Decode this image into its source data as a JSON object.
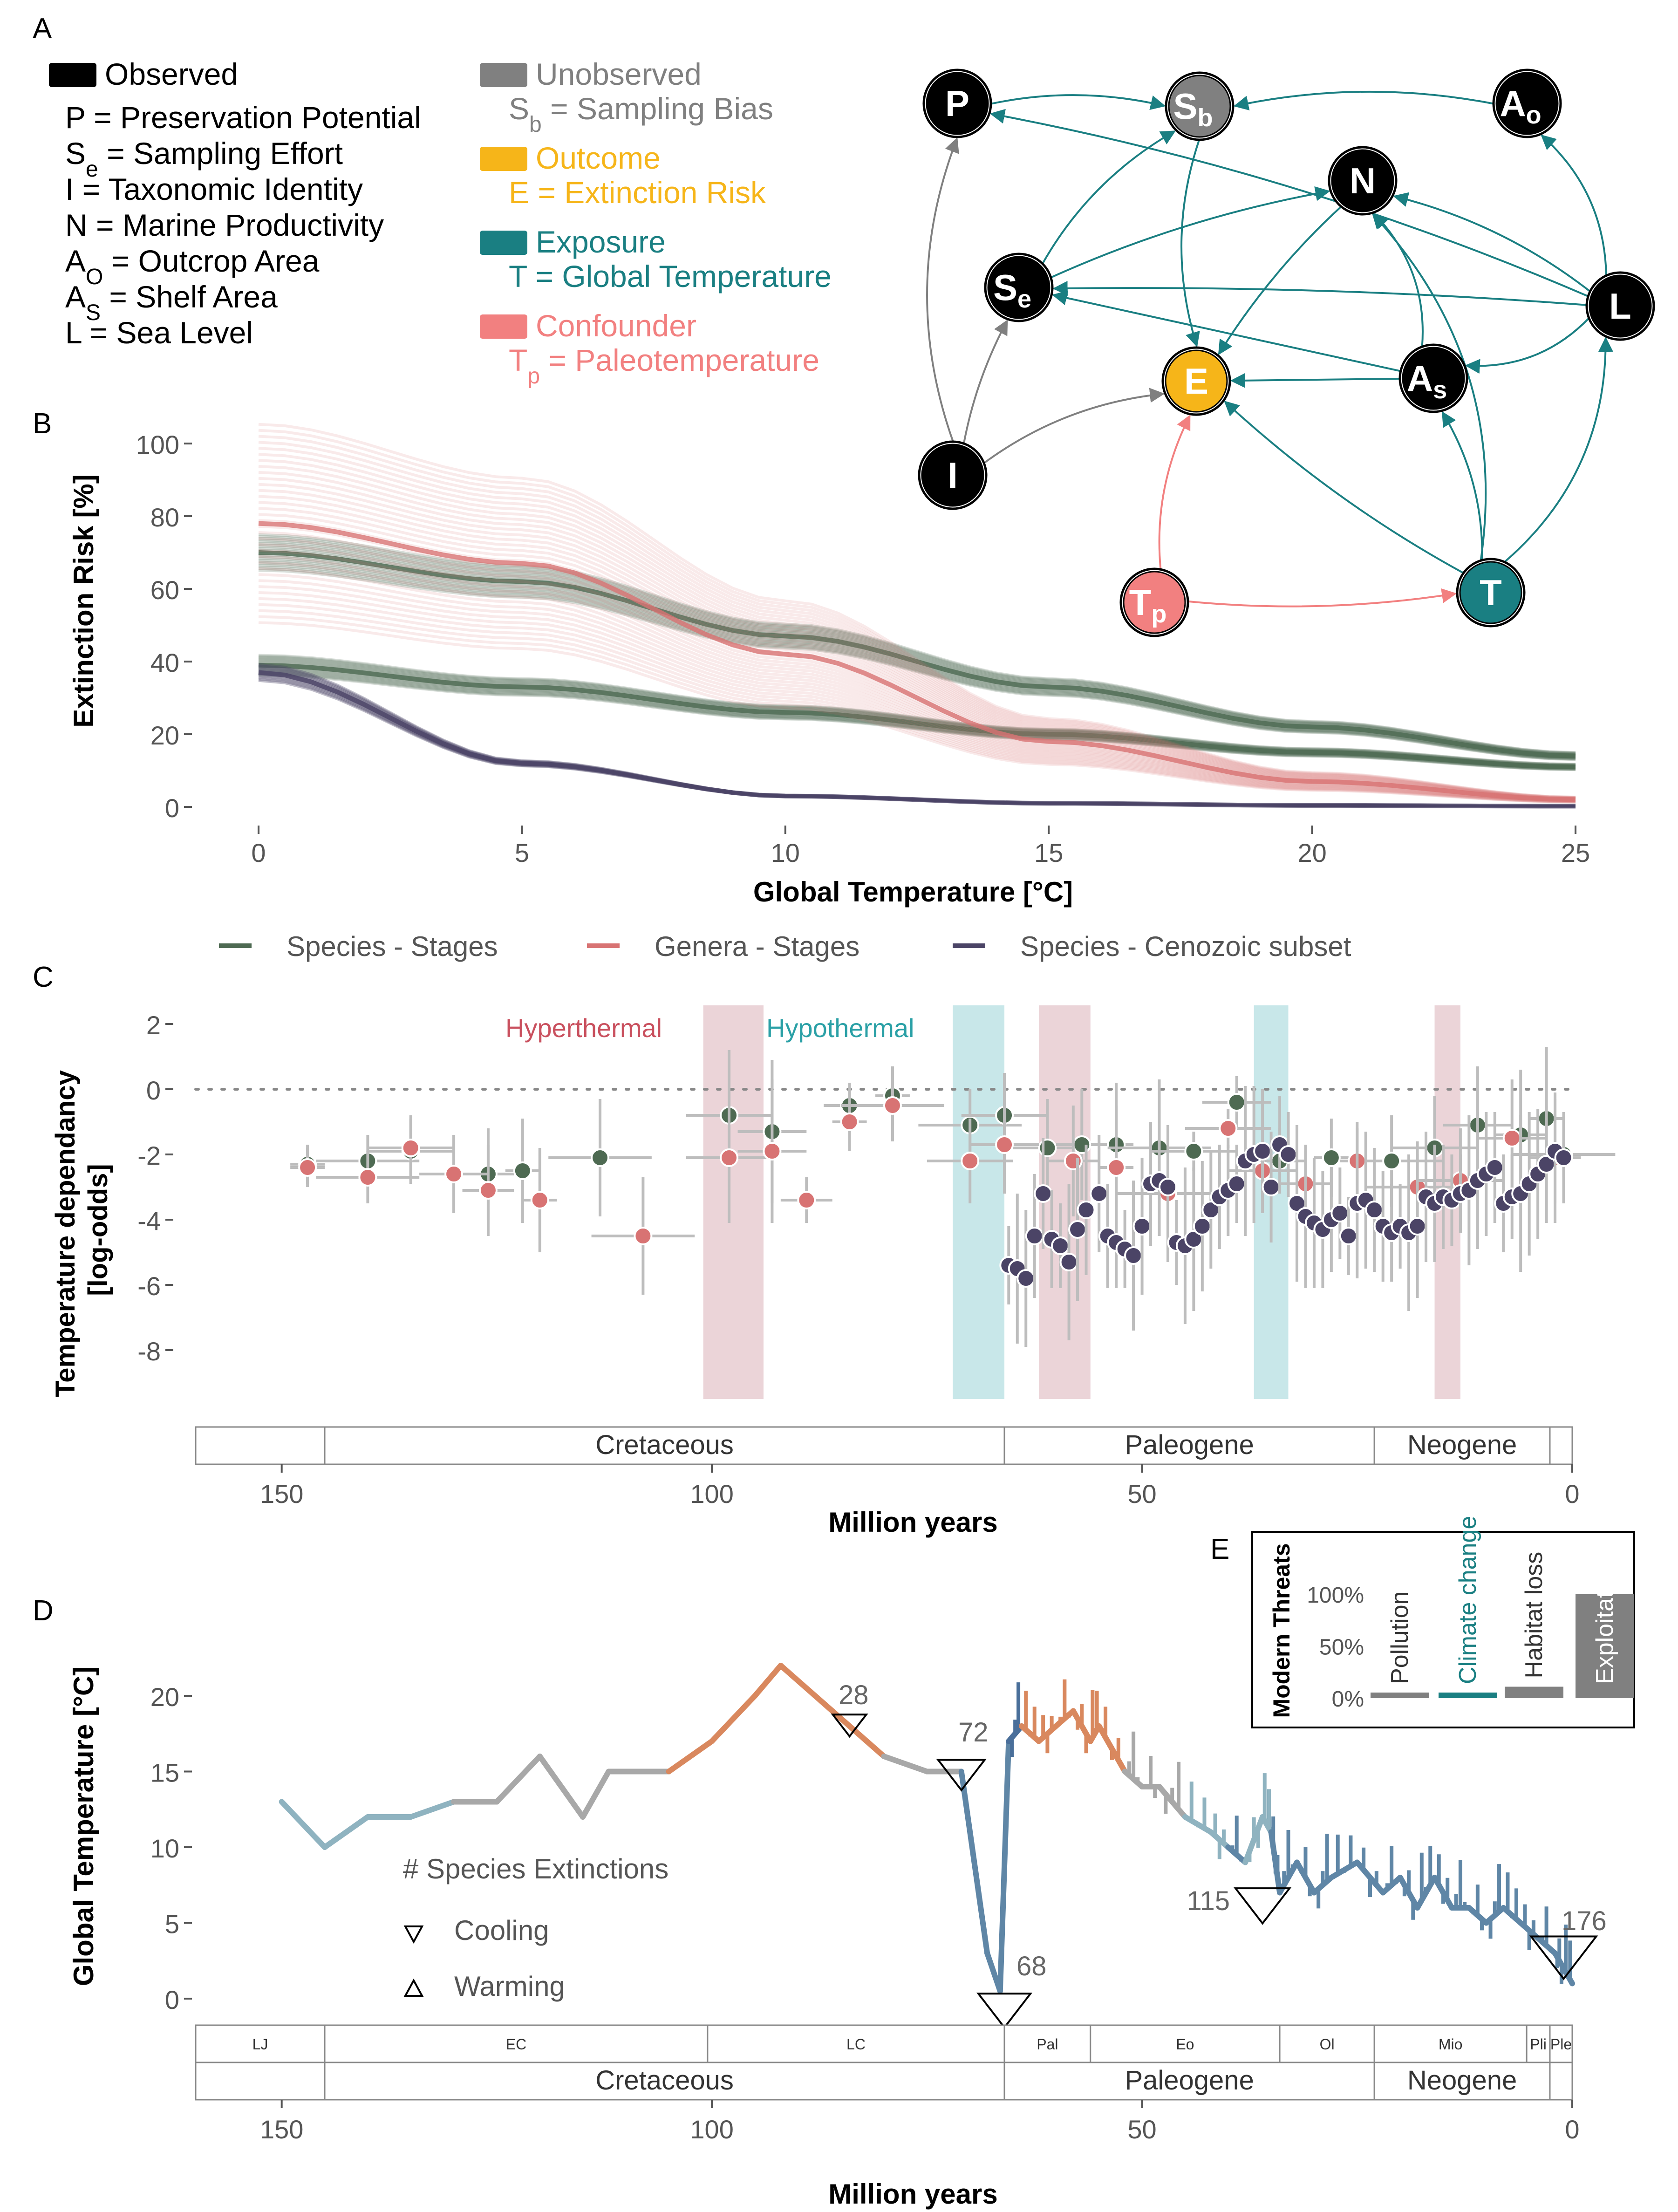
{
  "panels": {
    "A": "A",
    "B": "B",
    "C": "C",
    "D": "D",
    "E": "E"
  },
  "colors": {
    "observed": "#000000",
    "unobserved": "#808080",
    "outcome": "#F6B519",
    "exposure": "#1A7F82",
    "confounder": "#F28080",
    "green": "#4E6A52",
    "red": "#D87373",
    "purple": "#4B4466",
    "hyper": "#EBD4D8",
    "hypo": "#C8E7E9",
    "grey": "#BDBDBD"
  },
  "legendA": {
    "observed": "Observed",
    "observed_items": [
      [
        "P = Preservation Potential"
      ],
      [
        "S",
        "e",
        " = Sampling Effort"
      ],
      [
        "I = Taxonomic Identity"
      ],
      [
        "N = Marine Productivity"
      ],
      [
        "A",
        "O",
        " = Outcrop Area"
      ],
      [
        "A",
        "S",
        " = Shelf Area"
      ],
      [
        "L = Sea Level"
      ]
    ],
    "unobserved": "Unobserved",
    "unobserved_item": [
      "S",
      "b",
      " = Sampling Bias"
    ],
    "outcome": "Outcome",
    "outcome_item": "E = Extinction Risk",
    "exposure": "Exposure",
    "exposure_item": "T = Global Temperature",
    "confounder": "Confounder",
    "confounder_item": [
      "T",
      "p",
      " = Paleotemperature"
    ]
  },
  "dag": {
    "nodes": [
      {
        "id": "P",
        "label": "P",
        "sub": "",
        "kind": "observed"
      },
      {
        "id": "Sb",
        "label": "S",
        "sub": "b",
        "kind": "unobserved"
      },
      {
        "id": "Ao",
        "label": "A",
        "sub": "o",
        "kind": "observed"
      },
      {
        "id": "N",
        "label": "N",
        "sub": "",
        "kind": "observed"
      },
      {
        "id": "Se",
        "label": "S",
        "sub": "e",
        "kind": "observed"
      },
      {
        "id": "L",
        "label": "L",
        "sub": "",
        "kind": "observed"
      },
      {
        "id": "E",
        "label": "E",
        "sub": "",
        "kind": "outcome"
      },
      {
        "id": "As",
        "label": "A",
        "sub": "s",
        "kind": "observed"
      },
      {
        "id": "I",
        "label": "I",
        "sub": "",
        "kind": "observed"
      },
      {
        "id": "Tp",
        "label": "T",
        "sub": "p",
        "kind": "confounder"
      },
      {
        "id": "T",
        "label": "T",
        "sub": "",
        "kind": "exposure"
      }
    ],
    "edges": [
      [
        "P",
        "Sb",
        "exposure"
      ],
      [
        "Ao",
        "Sb",
        "exposure"
      ],
      [
        "Se",
        "Sb",
        "exposure"
      ],
      [
        "Sb",
        "E",
        "exposure"
      ],
      [
        "L",
        "P",
        "exposure"
      ],
      [
        "L",
        "Ao",
        "exposure"
      ],
      [
        "L",
        "N",
        "exposure"
      ],
      [
        "L",
        "Se",
        "exposure"
      ],
      [
        "L",
        "As",
        "exposure"
      ],
      [
        "As",
        "N",
        "exposure"
      ],
      [
        "As",
        "E",
        "exposure"
      ],
      [
        "As",
        "Se",
        "exposure"
      ],
      [
        "N",
        "E",
        "exposure"
      ],
      [
        "Se",
        "N",
        "exposure"
      ],
      [
        "T",
        "E",
        "exposure"
      ],
      [
        "T",
        "N",
        "exposure"
      ],
      [
        "T",
        "L",
        "exposure"
      ],
      [
        "T",
        "As",
        "exposure"
      ],
      [
        "I",
        "P",
        "unobserved"
      ],
      [
        "I",
        "Se",
        "unobserved"
      ],
      [
        "I",
        "E",
        "unobserved"
      ],
      [
        "Tp",
        "E",
        "confounder"
      ],
      [
        "Tp",
        "T",
        "confounder"
      ]
    ]
  },
  "panelB": {
    "ylabel": "Extinction Risk [%]",
    "xlabel": "Global Temperature [°C]",
    "yticks": [
      "0",
      "20",
      "40",
      "60",
      "80",
      "100"
    ],
    "xticks": [
      "0",
      "5",
      "10",
      "15",
      "20",
      "25"
    ],
    "legend": [
      "Species - Stages",
      "Genera - Stages",
      "Species - Cenozoic subset"
    ]
  },
  "panelC": {
    "ylabel1": "Temperature dependancy",
    "ylabel2": "[log-odds]",
    "yticks": [
      "2",
      "0",
      "-2",
      "-4",
      "-6",
      "-8"
    ],
    "hyper_label": "Hyperthermal",
    "hypo_label": "Hypothermal",
    "periods": [
      "Cretaceous",
      "Paleogene",
      "Neogene"
    ],
    "xticks": [
      "150",
      "100",
      "50",
      "0"
    ],
    "xlabel": "Million years"
  },
  "panelD": {
    "ylabel": "Global Temperature [°C]",
    "yticks": [
      "20",
      "15",
      "10",
      "5",
      "0"
    ],
    "xticks": [
      "150",
      "100",
      "50",
      "0"
    ],
    "xlabel": "Million years",
    "legend_title": "# Species Extinctions",
    "legend_cooling": "Cooling",
    "legend_warming": "Warming",
    "epochs": [
      "LJ",
      "EC",
      "LC",
      "Pal",
      "Eo",
      "Ol",
      "Mio",
      "Pli",
      "Ple"
    ],
    "periods": [
      "Cretaceous",
      "Paleogene",
      "Neogene"
    ],
    "event_labels": [
      "28",
      "72",
      "68",
      "115",
      "176"
    ]
  },
  "panelE": {
    "title": "Modern Threats",
    "yticks": [
      "100%",
      "50%",
      "0%"
    ],
    "bars": [
      {
        "label": "Pollution",
        "value": 4,
        "color": "#808080"
      },
      {
        "label": "Climate change",
        "value": 4,
        "color": "#1A7F82"
      },
      {
        "label": "Habitat loss",
        "value": 11,
        "color": "#808080"
      },
      {
        "label": "Exploitation",
        "value": 100,
        "color": "#808080"
      }
    ]
  },
  "chart_data": [
    {
      "type": "line",
      "panel": "B",
      "xlabel": "Global Temperature [°C]",
      "ylabel": "Extinction Risk [%]",
      "xlim": [
        0,
        25
      ],
      "ylim": [
        0,
        100
      ],
      "x": [
        0,
        5,
        10,
        15,
        20,
        25
      ],
      "series": [
        {
          "name": "Species - Stages",
          "values": [
            70,
            62,
            47,
            33,
            22,
            14
          ]
        },
        {
          "name": "Species - Stages",
          "values": [
            39,
            33,
            26,
            20,
            15,
            11
          ]
        },
        {
          "name": "Genera - Stages",
          "values": [
            78,
            67,
            42,
            18,
            7,
            2
          ]
        },
        {
          "name": "Species - Cenozoic subset",
          "values": [
            37,
            12,
            3,
            1,
            0.4,
            0.2
          ]
        }
      ]
    },
    {
      "type": "scatter",
      "panel": "C",
      "xlabel": "Million years",
      "ylabel": "Temperature dependancy [log-odds]",
      "xlim": [
        160,
        0
      ],
      "ylim": [
        -10,
        3
      ],
      "hyperthermal_intervals": [
        [
          101,
          94
        ],
        [
          62,
          56
        ],
        [
          16,
          13
        ]
      ],
      "hypothermal_intervals": [
        [
          72,
          66
        ],
        [
          37,
          33
        ]
      ],
      "series": [
        {
          "name": "Species - Stages",
          "points": [
            [
              147,
              -2.3
            ],
            [
              140,
              -2.2
            ],
            [
              135,
              -1.9
            ],
            [
              130,
              -2.6
            ],
            [
              126,
              -2.6
            ],
            [
              122,
              -2.5
            ],
            [
              113,
              -2.1
            ],
            [
              98,
              -0.8
            ],
            [
              93,
              -1.3
            ],
            [
              84,
              -0.5
            ],
            [
              79,
              -0.2
            ],
            [
              70,
              -1.1
            ],
            [
              66,
              -0.8
            ],
            [
              61,
              -1.8
            ],
            [
              57,
              -1.7
            ],
            [
              53,
              -1.7
            ],
            [
              48,
              -1.8
            ],
            [
              44,
              -1.9
            ],
            [
              39,
              -0.4
            ],
            [
              34,
              -2.2
            ],
            [
              28,
              -2.1
            ],
            [
              21,
              -2.2
            ],
            [
              16,
              -1.8
            ],
            [
              11,
              -1.1
            ],
            [
              6,
              -1.4
            ],
            [
              3,
              -0.9
            ],
            [
              1,
              -2.0
            ]
          ]
        },
        {
          "name": "Genera - Stages",
          "points": [
            [
              147,
              -2.4
            ],
            [
              140,
              -2.7
            ],
            [
              135,
              -1.8
            ],
            [
              130,
              -2.6
            ],
            [
              126,
              -3.1
            ],
            [
              120,
              -3.4
            ],
            [
              108,
              -4.5
            ],
            [
              98,
              -2.1
            ],
            [
              93,
              -1.9
            ],
            [
              89,
              -3.4
            ],
            [
              84,
              -1.0
            ],
            [
              79,
              -0.5
            ],
            [
              70,
              -2.2
            ],
            [
              66,
              -1.7
            ],
            [
              58,
              -2.2
            ],
            [
              53,
              -2.4
            ],
            [
              47,
              -3.2
            ],
            [
              40,
              -1.2
            ],
            [
              36,
              -2.5
            ],
            [
              31,
              -2.9
            ],
            [
              25,
              -2.2
            ],
            [
              18,
              -3.0
            ],
            [
              13,
              -2.8
            ],
            [
              7,
              -1.5
            ],
            [
              2,
              -2.1
            ]
          ]
        },
        {
          "name": "Species - Cenozoic subset",
          "points": [
            [
              65.5,
              -5.4
            ],
            [
              64.5,
              -5.5
            ],
            [
              63.5,
              -5.8
            ],
            [
              62.5,
              -4.5
            ],
            [
              61.5,
              -3.2
            ],
            [
              60.5,
              -4.6
            ],
            [
              59.5,
              -4.8
            ],
            [
              58.5,
              -5.3
            ],
            [
              57.5,
              -4.3
            ],
            [
              56.5,
              -3.7
            ],
            [
              55,
              -3.2
            ],
            [
              54,
              -4.5
            ],
            [
              53,
              -4.7
            ],
            [
              52,
              -4.9
            ],
            [
              51,
              -5.1
            ],
            [
              50,
              -4.2
            ],
            [
              49,
              -2.9
            ],
            [
              48,
              -2.8
            ],
            [
              47,
              -3.0
            ],
            [
              46,
              -4.7
            ],
            [
              45,
              -4.8
            ],
            [
              44,
              -4.6
            ],
            [
              43,
              -4.2
            ],
            [
              42,
              -3.7
            ],
            [
              41,
              -3.3
            ],
            [
              40,
              -3.1
            ],
            [
              39,
              -2.9
            ],
            [
              38,
              -2.2
            ],
            [
              37,
              -2.0
            ],
            [
              36,
              -1.9
            ],
            [
              35,
              -3.0
            ],
            [
              34,
              -1.7
            ],
            [
              33,
              -2.0
            ],
            [
              32,
              -3.5
            ],
            [
              31,
              -3.9
            ],
            [
              30,
              -4.1
            ],
            [
              29,
              -4.3
            ],
            [
              28,
              -4.0
            ],
            [
              27,
              -3.8
            ],
            [
              26,
              -4.5
            ],
            [
              25,
              -3.5
            ],
            [
              24,
              -3.4
            ],
            [
              23,
              -3.7
            ],
            [
              22,
              -4.2
            ],
            [
              21,
              -4.4
            ],
            [
              20,
              -4.2
            ],
            [
              19,
              -4.4
            ],
            [
              18,
              -4.2
            ],
            [
              17,
              -3.3
            ],
            [
              16,
              -3.5
            ],
            [
              15,
              -3.3
            ],
            [
              14,
              -3.4
            ],
            [
              13,
              -3.2
            ],
            [
              12,
              -3.1
            ],
            [
              11,
              -2.8
            ],
            [
              10,
              -2.6
            ],
            [
              9,
              -2.4
            ],
            [
              8,
              -3.5
            ],
            [
              7,
              -3.3
            ],
            [
              6,
              -3.2
            ],
            [
              5,
              -2.9
            ],
            [
              4,
              -2.6
            ],
            [
              3,
              -2.3
            ],
            [
              2,
              -1.9
            ],
            [
              1,
              -2.1
            ]
          ]
        }
      ]
    },
    {
      "type": "line",
      "panel": "D",
      "xlabel": "Million years",
      "ylabel": "Global Temperature [°C]",
      "xlim": [
        160,
        0
      ],
      "ylim": [
        -1,
        23
      ],
      "series": [
        {
          "values_x": [
            150,
            145,
            140,
            135,
            130,
            125,
            120,
            115,
            112,
            105,
            100,
            95,
            92,
            88,
            84,
            80,
            75,
            71,
            68,
            66.5,
            65.5,
            64,
            62,
            60,
            58,
            56,
            55,
            52,
            50,
            48,
            45,
            42,
            40,
            38,
            36,
            35,
            34,
            32,
            30,
            28,
            25,
            22,
            20,
            18,
            16,
            14,
            12,
            10,
            8,
            6,
            4,
            2,
            1,
            0
          ],
          "values_y": [
            13,
            10,
            12,
            12,
            13,
            13,
            16,
            12,
            15,
            15,
            17,
            20,
            22,
            20,
            18,
            16,
            15,
            15,
            3,
            0.5,
            17,
            18,
            17,
            18,
            19,
            17,
            18,
            15,
            14,
            14,
            12,
            11,
            10,
            9,
            12,
            11,
            7,
            9,
            7,
            8,
            9,
            7,
            8,
            6,
            8,
            6,
            6,
            5,
            6,
            5,
            4,
            3,
            2,
            1
          ]
        }
      ],
      "extinction_events": [
        {
          "x": 84,
          "count": 28,
          "kind": "cooling"
        },
        {
          "x": 71,
          "count": 72,
          "kind": "cooling"
        },
        {
          "x": 66,
          "count": 68,
          "kind": "cooling"
        },
        {
          "x": 36,
          "count": 115,
          "kind": "cooling"
        },
        {
          "x": 1,
          "count": 176,
          "kind": "cooling"
        }
      ]
    },
    {
      "type": "bar",
      "panel": "E",
      "title": "Modern Threats",
      "categories": [
        "Pollution",
        "Climate change",
        "Habitat loss",
        "Exploitation"
      ],
      "values": [
        4,
        4,
        11,
        100
      ],
      "ylim": [
        0,
        100
      ]
    }
  ]
}
